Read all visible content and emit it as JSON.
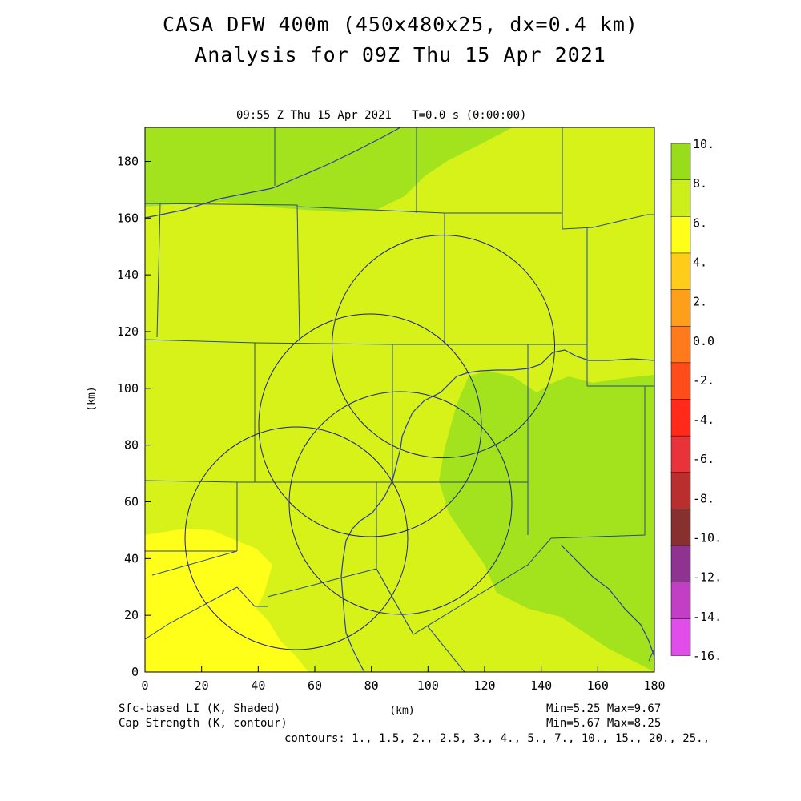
{
  "header": {
    "title_line1": "CASA DFW 400m (450x480x25, dx=0.4 km)",
    "title_line2": "Analysis for 09Z Thu 15 Apr 2021",
    "time_line": "09:55 Z Thu 15 Apr 2021   T=0.0 s (0:00:00)"
  },
  "axes": {
    "xlabel": "(km)",
    "ylabel": "(km)",
    "x_ticks": [
      "0",
      "20",
      "40",
      "60",
      "80",
      "100",
      "120",
      "140",
      "160",
      "180"
    ],
    "y_ticks": [
      "0",
      "20",
      "40",
      "60",
      "80",
      "100",
      "120",
      "140",
      "160",
      "180"
    ],
    "xlim": [
      0,
      180
    ],
    "ylim": [
      0,
      192
    ]
  },
  "colorbar": {
    "labels": [
      "10.",
      "8.",
      "6.",
      "4.",
      "2.",
      "0.0",
      "-2.",
      "-4.",
      "-6.",
      "-8.",
      "-10.",
      "-12.",
      "-14.",
      "-16."
    ],
    "colors": [
      "#99dd1a",
      "#ccee1a",
      "#ffff1a",
      "#ffcc1a",
      "#ff9f1a",
      "#ff7a1a",
      "#ff4d1a",
      "#ff2a1a",
      "#e8333a",
      "#bb2e2e",
      "#883030",
      "#8e3390",
      "#c23ec4",
      "#e04de8"
    ]
  },
  "legend": {
    "shaded_label": "Sfc-based LI (K, Shaded)",
    "contour_label": "Cap Strength (K, contour)",
    "shaded_minmax": "Min=5.25 Max=9.67",
    "contour_minmax": "Min=5.67 Max=8.25",
    "contours": "contours: 1., 1.5, 2., 2.5, 3., 4., 5., 7., 10., 15., 20., 25.,"
  },
  "field_colors": {
    "background": "#d6f218",
    "dark_green": "#a3e31d",
    "yellow": "#ffff1a",
    "boundary": "#2a4a8a",
    "contour": "#1e1e7a"
  },
  "radars": [
    {
      "center_km": [
        106,
        116
      ],
      "radius_km": 39
    },
    {
      "center_km": [
        79,
        88
      ],
      "radius_km": 39
    },
    {
      "center_km": [
        91,
        63
      ],
      "radius_km": 39
    },
    {
      "center_km": [
        53,
        48
      ],
      "radius_km": 39
    }
  ]
}
